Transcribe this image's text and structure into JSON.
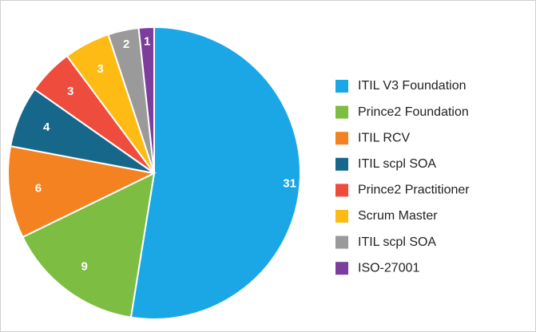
{
  "chart_data": {
    "type": "pie",
    "categories": [
      "ITIL V3 Foundation",
      "Prince2 Foundation",
      "ITIL RCV",
      "ITIL scpl SOA",
      "Prince2 Practitioner",
      "Scrum Master",
      "ITIL scpl SOA",
      "ISO-27001"
    ],
    "values": [
      31,
      9,
      6,
      4,
      3,
      3,
      2,
      1
    ],
    "colors": [
      "#1ba7e6",
      "#7cbd42",
      "#f58220",
      "#17678a",
      "#ee4d3d",
      "#fdbb13",
      "#9a9a9a",
      "#7d3d9c"
    ],
    "legend": "right"
  }
}
